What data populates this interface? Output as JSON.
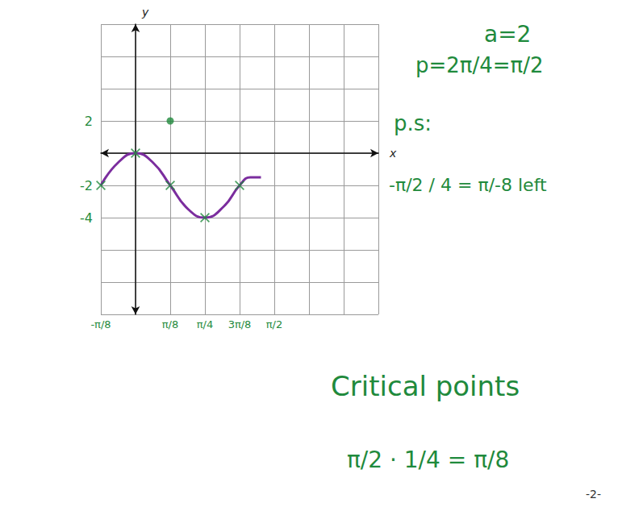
{
  "chart_data": {
    "type": "line",
    "xlabel": "x",
    "ylabel": "y",
    "xlim": [
      -0.3927,
      2.7489
    ],
    "xticks": [
      {
        "value": -0.3927,
        "label": "-π/8"
      },
      {
        "value": 0.3927,
        "label": "π/8"
      },
      {
        "value": 0.7854,
        "label": "π/4"
      },
      {
        "value": 1.1781,
        "label": "3π/8"
      },
      {
        "value": 1.5708,
        "label": "π/2"
      }
    ],
    "ylim": [
      -10,
      8
    ],
    "yticks": [
      -4,
      -2,
      2
    ],
    "grid": true,
    "series": [
      {
        "type": "line",
        "color": "#7b2d9e",
        "marker": "none",
        "x": [
          -0.3927,
          -0.2,
          0,
          0.2,
          0.3927,
          0.6,
          0.7854,
          1.0,
          1.1781,
          1.3,
          1.42
        ],
        "values": [
          -2,
          -0.6,
          0,
          -0.6,
          -2,
          -3.5,
          -4,
          -3.3,
          -2,
          -1.5,
          -1.5
        ]
      },
      {
        "type": "scatter",
        "color": "#1f8a3c",
        "marker": "x",
        "x": [
          -0.3927,
          0,
          0.3927,
          0.7854,
          1.1781
        ],
        "values": [
          -2,
          0,
          -2,
          -4,
          -2
        ]
      },
      {
        "type": "scatter",
        "color": "#1f8a3c",
        "marker": "dot",
        "x": [
          0.3927
        ],
        "values": [
          2
        ]
      }
    ],
    "annotations": [
      "a=2",
      "p=2π/4=π/2",
      "p.s:",
      "-π/2 / 4 = π/-8 left",
      "Critical points",
      "π/2 · 1/4 = π/8",
      "-2-"
    ]
  }
}
